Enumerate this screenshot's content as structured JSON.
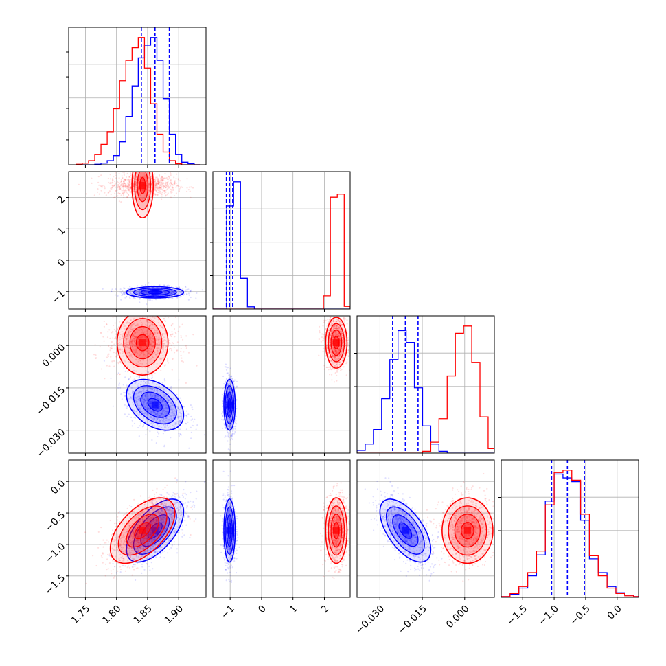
{
  "chart_data": {
    "type": "corner",
    "grid": true,
    "parameters": [
      {
        "ticks": [
          1.75,
          1.8,
          1.85,
          1.9
        ],
        "tick_labels": [
          "1.75",
          "1.80",
          "1.85",
          "1.90"
        ],
        "range": [
          1.723,
          1.944
        ]
      },
      {
        "ticks": [
          -1,
          0,
          1,
          2
        ],
        "tick_labels": [
          "−1",
          "0",
          "1",
          "2"
        ],
        "range": [
          -1.55,
          2.82
        ]
      },
      {
        "ticks": [
          -0.03,
          -0.015,
          0.0
        ],
        "tick_labels": [
          "−0.030",
          "−0.015",
          "0.000"
        ],
        "range": [
          -0.0381,
          0.0105
        ]
      },
      {
        "ticks": [
          -1.5,
          -1.0,
          -0.5,
          0.0
        ],
        "tick_labels": [
          "−1.5",
          "−1.0",
          "−0.5",
          "0.0"
        ],
        "range": [
          -1.84,
          0.34
        ]
      }
    ],
    "colors": {
      "series_a": "#0000ff",
      "series_b": "#ff0000"
    },
    "series": [
      {
        "color": "#0000ff",
        "means": [
          1.862,
          -1.02,
          -0.021,
          -0.78
        ],
        "stds": [
          0.023,
          0.09,
          0.0045,
          0.25
        ],
        "correlations": {
          "0-2": -0.4,
          "0-3": 0.6,
          "2-3": -0.6
        },
        "quantiles": {
          "p0": [
            1.84,
            1.862,
            1.885
          ],
          "p1": [
            -1.12,
            -1.02,
            -0.92
          ],
          "p2": [
            -0.0255,
            -0.021,
            -0.0165
          ],
          "p3": [
            -1.04,
            -0.79,
            -0.52
          ]
        }
      },
      {
        "color": "#ff0000",
        "means": [
          1.842,
          2.38,
          0.001,
          -0.78
        ],
        "stds": [
          0.026,
          0.17,
          0.0045,
          0.26
        ],
        "correlations": {
          "0-3": 0.55
        },
        "quantiles": {}
      }
    ],
    "histograms": {
      "p0": {
        "bins": [
          1.735,
          1.745,
          1.755,
          1.765,
          1.775,
          1.785,
          1.795,
          1.805,
          1.815,
          1.825,
          1.835,
          1.845,
          1.855,
          1.865,
          1.875,
          1.885,
          1.895,
          1.905,
          1.915,
          1.925,
          1.935
        ],
        "series_a": [
          0,
          0,
          0,
          1,
          3,
          8,
          18,
          45,
          95,
          155,
          210,
          235,
          250,
          205,
          130,
          60,
          20,
          5,
          2,
          0
        ],
        "series_b": [
          1,
          3,
          8,
          20,
          40,
          65,
          110,
          165,
          205,
          230,
          250,
          190,
          120,
          60,
          25,
          8,
          2,
          0,
          0,
          0
        ]
      },
      "p1": {
        "bins": [
          -1.55,
          -1.33,
          -1.11,
          -0.89,
          -0.67,
          -0.45,
          -0.23,
          -0.01,
          0.21,
          0.43,
          0.65,
          0.87,
          1.09,
          1.31,
          1.53,
          1.75,
          1.97,
          2.19,
          2.41,
          2.63,
          2.82
        ],
        "series_a": [
          0,
          0,
          235,
          290,
          70,
          5,
          0,
          0,
          0,
          0,
          0,
          0,
          0,
          0,
          0,
          0,
          0,
          0,
          0,
          0
        ],
        "series_b": [
          0,
          0,
          0,
          0,
          0,
          0,
          0,
          0,
          0,
          0,
          0,
          0,
          0,
          0,
          0,
          0,
          30,
          255,
          262,
          6
        ]
      },
      "p2": {
        "bins": [
          -0.0381,
          -0.0352,
          -0.0323,
          -0.0294,
          -0.0265,
          -0.0236,
          -0.0207,
          -0.0178,
          -0.0149,
          -0.012,
          -0.0091,
          -0.0062,
          -0.0033,
          -0.0004,
          0.0025,
          0.0054,
          0.0083,
          0.0105
        ],
        "series_a": [
          3,
          10,
          26,
          60,
          103,
          135,
          122,
          72,
          30,
          10,
          2,
          0,
          0,
          0,
          0,
          0,
          0
        ],
        "series_b": [
          0,
          0,
          0,
          0,
          0,
          0,
          0,
          0,
          2,
          12,
          38,
          85,
          132,
          140,
          100,
          40,
          5
        ]
      },
      "p3": {
        "bins": [
          -1.84,
          -1.7,
          -1.56,
          -1.42,
          -1.28,
          -1.14,
          -1.0,
          -0.86,
          -0.72,
          -0.58,
          -0.44,
          -0.3,
          -0.16,
          -0.02,
          0.12,
          0.26,
          0.34
        ],
        "series_a": [
          1,
          4,
          12,
          28,
          55,
          125,
          160,
          155,
          150,
          100,
          50,
          32,
          14,
          6,
          3,
          1
        ],
        "series_b": [
          1,
          5,
          14,
          32,
          60,
          120,
          162,
          165,
          152,
          108,
          54,
          28,
          12,
          5,
          2,
          1
        ]
      }
    }
  }
}
